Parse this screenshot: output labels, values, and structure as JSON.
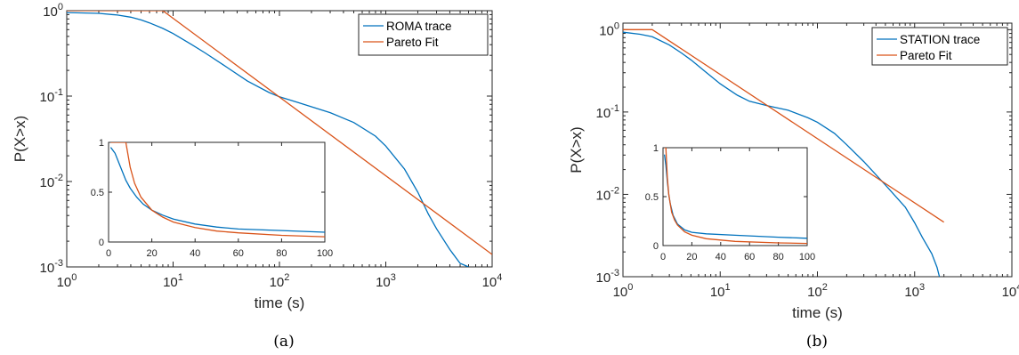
{
  "colors": {
    "trace": "#0072bd",
    "fit": "#d95319",
    "axes": "#262626"
  },
  "chart_data": [
    {
      "type": "line",
      "caption": "(a)",
      "xlabel": "time (s)",
      "ylabel": "P(X>x)",
      "xscale": "log",
      "yscale": "log",
      "xlim": [
        1,
        10000
      ],
      "ylim": [
        0.001,
        1
      ],
      "xticks": [
        {
          "base": "10",
          "exp": "0",
          "v": 1
        },
        {
          "base": "10",
          "exp": "1",
          "v": 10
        },
        {
          "base": "10",
          "exp": "2",
          "v": 100
        },
        {
          "base": "10",
          "exp": "3",
          "v": 1000
        },
        {
          "base": "10",
          "exp": "4",
          "v": 10000
        }
      ],
      "yticks": [
        {
          "base": "10",
          "exp": "-3",
          "v": 0.001
        },
        {
          "base": "10",
          "exp": "-2",
          "v": 0.01
        },
        {
          "base": "10",
          "exp": "-1",
          "v": 0.1
        },
        {
          "base": "10",
          "exp": "0",
          "v": 1
        }
      ],
      "legend": {
        "position": "top-right",
        "entries": [
          "ROMA trace",
          "Pareto Fit"
        ]
      },
      "series": [
        {
          "name": "ROMA trace",
          "color_key": "trace",
          "x": [
            1,
            2,
            3,
            4,
            5,
            6,
            8,
            10,
            15,
            20,
            30,
            50,
            80,
            100,
            150,
            200,
            300,
            500,
            800,
            1000,
            1500,
            2000,
            2500,
            3000,
            4000,
            5000,
            6000
          ],
          "y": [
            0.95,
            0.93,
            0.89,
            0.84,
            0.78,
            0.72,
            0.62,
            0.54,
            0.4,
            0.32,
            0.23,
            0.15,
            0.11,
            0.098,
            0.084,
            0.075,
            0.064,
            0.049,
            0.034,
            0.026,
            0.014,
            0.0075,
            0.0042,
            0.0028,
            0.0016,
            0.0011,
            0.001
          ]
        },
        {
          "name": "Pareto Fit",
          "color_key": "fit",
          "x": [
            1,
            8,
            10000
          ],
          "y": [
            1,
            1,
            0.0014
          ]
        }
      ],
      "inset": {
        "xlim": [
          0,
          100
        ],
        "ylim": [
          0,
          1
        ],
        "xticks": [
          0,
          20,
          40,
          60,
          80,
          100
        ],
        "yticks": [
          0,
          0.5,
          1
        ],
        "ytick_labels": [
          "0",
          "0.5",
          "1"
        ],
        "series": [
          {
            "name": "ROMA trace",
            "color_key": "trace",
            "x": [
              1,
              3,
              5,
              8,
              10,
              13,
              16,
              20,
              25,
              30,
              40,
              50,
              60,
              80,
              100
            ],
            "y": [
              0.95,
              0.89,
              0.78,
              0.62,
              0.54,
              0.45,
              0.38,
              0.32,
              0.27,
              0.23,
              0.18,
              0.15,
              0.13,
              0.115,
              0.098
            ]
          },
          {
            "name": "Pareto Fit",
            "color_key": "fit",
            "x": [
              1,
              8,
              10,
              12,
              15,
              20,
              25,
              30,
              40,
              50,
              60,
              80,
              100
            ],
            "y": [
              1,
              1,
              0.75,
              0.59,
              0.45,
              0.32,
              0.25,
              0.2,
              0.145,
              0.11,
              0.092,
              0.067,
              0.053
            ]
          }
        ]
      }
    },
    {
      "type": "line",
      "caption": "(b)",
      "xlabel": "time (s)",
      "ylabel": "P(X>x)",
      "xscale": "log",
      "yscale": "log",
      "xlim": [
        1,
        10000
      ],
      "ylim": [
        0.001,
        1.2
      ],
      "xticks": [
        {
          "base": "10",
          "exp": "0",
          "v": 1
        },
        {
          "base": "10",
          "exp": "1",
          "v": 10
        },
        {
          "base": "10",
          "exp": "2",
          "v": 100
        },
        {
          "base": "10",
          "exp": "3",
          "v": 1000
        },
        {
          "base": "10",
          "exp": "4",
          "v": 10000
        }
      ],
      "yticks": [
        {
          "base": "10",
          "exp": "-3",
          "v": 0.001
        },
        {
          "base": "10",
          "exp": "-2",
          "v": 0.01
        },
        {
          "base": "10",
          "exp": "-1",
          "v": 0.1
        },
        {
          "base": "10",
          "exp": "0",
          "v": 1
        }
      ],
      "legend": {
        "position": "top-right",
        "entries": [
          "STATION trace",
          "Pareto Fit"
        ]
      },
      "series": [
        {
          "name": "STATION trace",
          "color_key": "trace",
          "x": [
            1,
            1.5,
            2,
            3,
            4,
            5,
            7,
            10,
            15,
            20,
            30,
            50,
            80,
            100,
            150,
            200,
            300,
            500,
            800,
            1000,
            1200,
            1500,
            1700,
            1800
          ],
          "y": [
            0.93,
            0.88,
            0.82,
            0.65,
            0.52,
            0.43,
            0.31,
            0.22,
            0.16,
            0.135,
            0.12,
            0.105,
            0.085,
            0.075,
            0.055,
            0.04,
            0.025,
            0.013,
            0.007,
            0.0045,
            0.003,
            0.0019,
            0.0013,
            0.001
          ]
        },
        {
          "name": "Pareto Fit",
          "color_key": "fit",
          "x": [
            1,
            2,
            2000
          ],
          "y": [
            1,
            1,
            0.0046
          ]
        }
      ],
      "inset": {
        "xlim": [
          0,
          100
        ],
        "ylim": [
          0,
          1
        ],
        "xticks": [
          0,
          20,
          40,
          60,
          80,
          100
        ],
        "yticks": [
          0,
          0.5,
          1
        ],
        "ytick_labels": [
          "0",
          "0.5",
          "1"
        ],
        "series": [
          {
            "name": "STATION trace",
            "color_key": "trace",
            "x": [
              1,
              2,
              3,
              4,
              5,
              7,
              10,
              15,
              20,
              30,
              50,
              80,
              100
            ],
            "y": [
              0.93,
              0.82,
              0.65,
              0.52,
              0.43,
              0.31,
              0.22,
              0.16,
              0.135,
              0.12,
              0.105,
              0.085,
              0.075
            ]
          },
          {
            "name": "Pareto Fit",
            "color_key": "fit",
            "x": [
              1,
              2,
              3,
              4,
              6,
              8,
              10,
              15,
              20,
              30,
              50,
              80,
              100
            ],
            "y": [
              1,
              1,
              0.69,
              0.52,
              0.34,
              0.26,
              0.21,
              0.14,
              0.105,
              0.07,
              0.043,
              0.027,
              0.022
            ]
          }
        ]
      }
    }
  ]
}
